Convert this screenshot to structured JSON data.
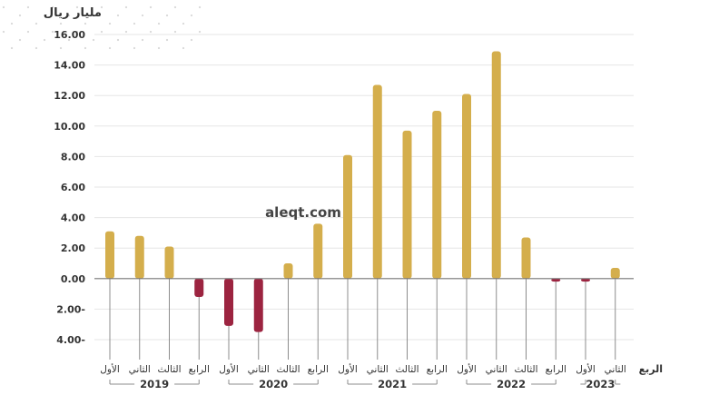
{
  "watermark": "aleqt.com",
  "chart_data": {
    "type": "bar",
    "unit_label": "مليار ريال",
    "xlabel": "الربع",
    "y_tick_labels": [
      "16.00",
      "14.00",
      "12.00",
      "10.00",
      "8.00",
      "6.00",
      "4.00",
      "2.00",
      "0.00",
      "2.00-",
      "4.00-"
    ],
    "ylim": [
      -4,
      16
    ],
    "grid": true,
    "categories": [
      "الأول",
      "الثاني",
      "الثالث",
      "الرابع",
      "الأول",
      "الثاني",
      "الثالث",
      "الرابع",
      "الأول",
      "الثاني",
      "الثالث",
      "الرابع",
      "الأول",
      "الثاني",
      "الثالث",
      "الرابع",
      "الأول",
      "الثاني"
    ],
    "values": [
      3.1,
      2.8,
      2.1,
      -1.2,
      -3.1,
      -3.5,
      1.0,
      3.6,
      8.1,
      12.7,
      9.7,
      11.0,
      12.1,
      14.9,
      2.7,
      -0.2,
      -0.2,
      0.7
    ],
    "years": [
      {
        "label": "2019",
        "count": 4
      },
      {
        "label": "2020",
        "count": 4
      },
      {
        "label": "2021",
        "count": 4
      },
      {
        "label": "2022",
        "count": 4
      },
      {
        "label": "2023",
        "count": 2
      }
    ],
    "colors": {
      "positive": "#d4ae4c",
      "negative": "#9c2440",
      "axis": "#777777",
      "grid": "#e6e6e6"
    }
  }
}
